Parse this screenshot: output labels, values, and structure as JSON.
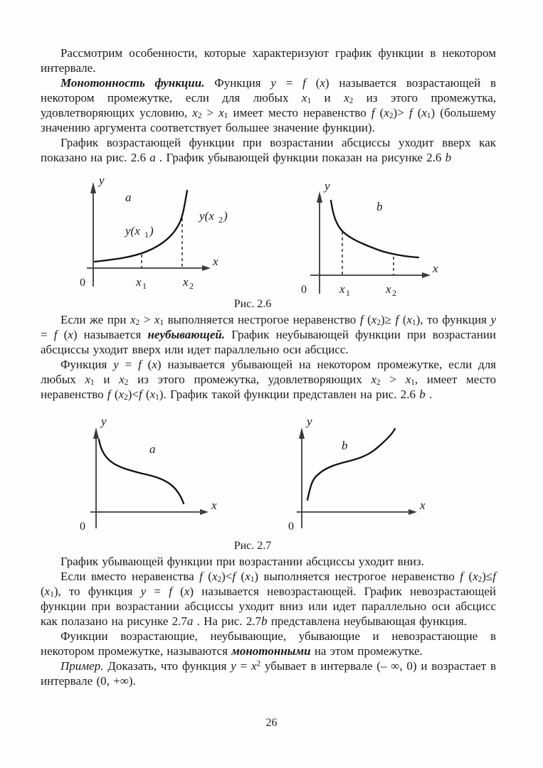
{
  "text": {
    "paragraphs": [
      {
        "indent": true,
        "segments": [
          {
            "t": "Рассмотрим особенности, которые характеризуют график функции в некотором интервале."
          }
        ]
      },
      {
        "indent": true,
        "segments": [
          {
            "t": "Монотонность функции.",
            "s": "bi"
          },
          {
            "t": " Функция "
          },
          {
            "t": "y",
            "s": "i"
          },
          {
            "t": " = "
          },
          {
            "t": "f",
            "s": "i"
          },
          {
            "t": " ("
          },
          {
            "t": "x",
            "s": "i"
          },
          {
            "t": ") называется возрастающей в некотором промежутке, если для любых "
          },
          {
            "t": "x",
            "s": "i"
          },
          {
            "t": "1",
            "s": "sub"
          },
          {
            "t": " и "
          },
          {
            "t": "x",
            "s": "i"
          },
          {
            "t": "2",
            "s": "sub"
          },
          {
            "t": " из этого промежутка, удовлетворяющих условию, "
          },
          {
            "t": "x",
            "s": "i"
          },
          {
            "t": "2",
            "s": "sub"
          },
          {
            "t": " > "
          },
          {
            "t": "x",
            "s": "i"
          },
          {
            "t": "1",
            "s": "sub"
          },
          {
            "t": " имеет место неравенство "
          },
          {
            "t": "f",
            "s": "i"
          },
          {
            "t": " ("
          },
          {
            "t": "x",
            "s": "i"
          },
          {
            "t": "2",
            "s": "sub"
          },
          {
            "t": ")> "
          },
          {
            "t": "f",
            "s": "i"
          },
          {
            "t": " ("
          },
          {
            "t": "x",
            "s": "i"
          },
          {
            "t": "1",
            "s": "sub"
          },
          {
            "t": ") (большему значению аргумента соответствует большее значение функции)."
          }
        ]
      },
      {
        "indent": true,
        "segments": [
          {
            "t": "График возрастающей функции при возрастании абсциссы уходит вверх как показано на рис. 2.6 "
          },
          {
            "t": "a",
            "s": "i"
          },
          {
            "t": " . График убывающей функции показан на рисунке 2.6 "
          },
          {
            "t": "b",
            "s": "i"
          }
        ]
      },
      {
        "indent": true,
        "segments": [
          {
            "t": "Если же при "
          },
          {
            "t": "x",
            "s": "i"
          },
          {
            "t": "2",
            "s": "sub"
          },
          {
            "t": " > "
          },
          {
            "t": "x",
            "s": "i"
          },
          {
            "t": "1",
            "s": "sub"
          },
          {
            "t": " выполняется нестрогое неравенство "
          },
          {
            "t": "f",
            "s": "i"
          },
          {
            "t": " ("
          },
          {
            "t": "x",
            "s": "i"
          },
          {
            "t": "2",
            "s": "sub"
          },
          {
            "t": ")≥ "
          },
          {
            "t": "f",
            "s": "i"
          },
          {
            "t": " ("
          },
          {
            "t": "x",
            "s": "i"
          },
          {
            "t": "1",
            "s": "sub"
          },
          {
            "t": "), то функция "
          },
          {
            "t": "y",
            "s": "i"
          },
          {
            "t": " = "
          },
          {
            "t": "f",
            "s": "i"
          },
          {
            "t": " ("
          },
          {
            "t": "x",
            "s": "i"
          },
          {
            "t": ") называется "
          },
          {
            "t": "неубывающей.",
            "s": "bi"
          },
          {
            "t": " График неубывающей функции при возрастании абсциссы уходит вверх или идет параллельно оси абсцисс."
          }
        ]
      },
      {
        "indent": true,
        "segments": [
          {
            "t": "Функция "
          },
          {
            "t": "y",
            "s": "i"
          },
          {
            "t": " = "
          },
          {
            "t": "f",
            "s": "i"
          },
          {
            "t": " ("
          },
          {
            "t": "x",
            "s": "i"
          },
          {
            "t": ") называется убывающей на некотором промежутке, если для любых "
          },
          {
            "t": "x",
            "s": "i"
          },
          {
            "t": "1",
            "s": "sub"
          },
          {
            "t": " и "
          },
          {
            "t": "x",
            "s": "i"
          },
          {
            "t": "2",
            "s": "sub"
          },
          {
            "t": " из этого промежутка, удовлетворяющих "
          },
          {
            "t": "x",
            "s": "i"
          },
          {
            "t": "2",
            "s": "sub"
          },
          {
            "t": " > "
          },
          {
            "t": "x",
            "s": "i"
          },
          {
            "t": "1",
            "s": "sub"
          },
          {
            "t": ", имеет место неравенство "
          },
          {
            "t": "f",
            "s": "i"
          },
          {
            "t": " ("
          },
          {
            "t": "x",
            "s": "i"
          },
          {
            "t": "2",
            "s": "sub"
          },
          {
            "t": ")<"
          },
          {
            "t": "f",
            "s": "i"
          },
          {
            "t": " ("
          },
          {
            "t": "x",
            "s": "i"
          },
          {
            "t": "1",
            "s": "sub"
          },
          {
            "t": "). График такой функции представлен на рис. 2.6 "
          },
          {
            "t": "b",
            "s": "i"
          },
          {
            "t": " ."
          }
        ]
      },
      {
        "indent": true,
        "segments": [
          {
            "t": "График убывающей функции при возрастании абсциссы уходит вниз."
          }
        ]
      },
      {
        "indent": true,
        "segments": [
          {
            "t": "Если вместо неравенства "
          },
          {
            "t": "f",
            "s": "i"
          },
          {
            "t": " ("
          },
          {
            "t": "x",
            "s": "i"
          },
          {
            "t": "2",
            "s": "sub"
          },
          {
            "t": ")<"
          },
          {
            "t": "f",
            "s": "i"
          },
          {
            "t": " ("
          },
          {
            "t": "x",
            "s": "i"
          },
          {
            "t": "1",
            "s": "sub"
          },
          {
            "t": ") выполняется нестрогое неравенство "
          },
          {
            "t": "f",
            "s": "i"
          },
          {
            "t": " ("
          },
          {
            "t": "x",
            "s": "i"
          },
          {
            "t": "2",
            "s": "sub"
          },
          {
            "t": ")≤"
          },
          {
            "t": "f",
            "s": "i"
          },
          {
            "t": " ("
          },
          {
            "t": "x",
            "s": "i"
          },
          {
            "t": "1",
            "s": "sub"
          },
          {
            "t": "), то функция "
          },
          {
            "t": "y",
            "s": "i"
          },
          {
            "t": " = "
          },
          {
            "t": "f",
            "s": "i"
          },
          {
            "t": " ("
          },
          {
            "t": "x",
            "s": "i"
          },
          {
            "t": ") называется невозрастающей. График невозрастающей функции при возрастании абсциссы уходит вниз или идет параллельно оси абсцисс как полазано на рисунке 2.7"
          },
          {
            "t": "a",
            "s": "i"
          },
          {
            "t": " . На рис. 2.7"
          },
          {
            "t": "b",
            "s": "i"
          },
          {
            "t": " представлена неубывающая функция."
          }
        ]
      },
      {
        "indent": true,
        "segments": [
          {
            "t": "Функции возрастающие, неубывающие, убывающие и невозрастающие в некотором промежутке, называются "
          },
          {
            "t": "монотонными",
            "s": "bi"
          },
          {
            "t": " на этом промежутке."
          }
        ]
      },
      {
        "indent": true,
        "segments": [
          {
            "t": "Пример.",
            "s": "i"
          },
          {
            "t": " Доказать, что функция "
          },
          {
            "t": "y",
            "s": "i"
          },
          {
            "t": " = "
          },
          {
            "t": "x",
            "s": "i"
          },
          {
            "t": "2",
            "s": "sup"
          },
          {
            "t": " убывает в интервале (– ∞, 0) и возрастает в интервале (0, +∞)."
          }
        ]
      }
    ]
  },
  "figures": {
    "fig_2_6": {
      "caption": "Рис. 2.6",
      "a": {
        "label": "a",
        "y": "y",
        "x": "x",
        "zero": "0",
        "x1": "x",
        "x1s": "1",
        "x2": "x",
        "x2s": "2",
        "yx1": "y(x",
        "yx1s": "1",
        "yx1c": ")",
        "yx2": "y(x",
        "yx2s": "2",
        "yx2c": ")"
      },
      "b": {
        "label": "b",
        "y": "y",
        "x": "x",
        "zero": "0",
        "x1": "x",
        "x1s": "1",
        "x2": "x",
        "x2s": "2"
      }
    },
    "fig_2_7": {
      "caption": "Рис. 2.7",
      "a": {
        "label": "a",
        "y": "y",
        "x": "x",
        "zero": "0"
      },
      "b": {
        "label": "b",
        "y": "y",
        "x": "x",
        "zero": "0"
      }
    }
  },
  "footer": {
    "page_number": "26"
  }
}
